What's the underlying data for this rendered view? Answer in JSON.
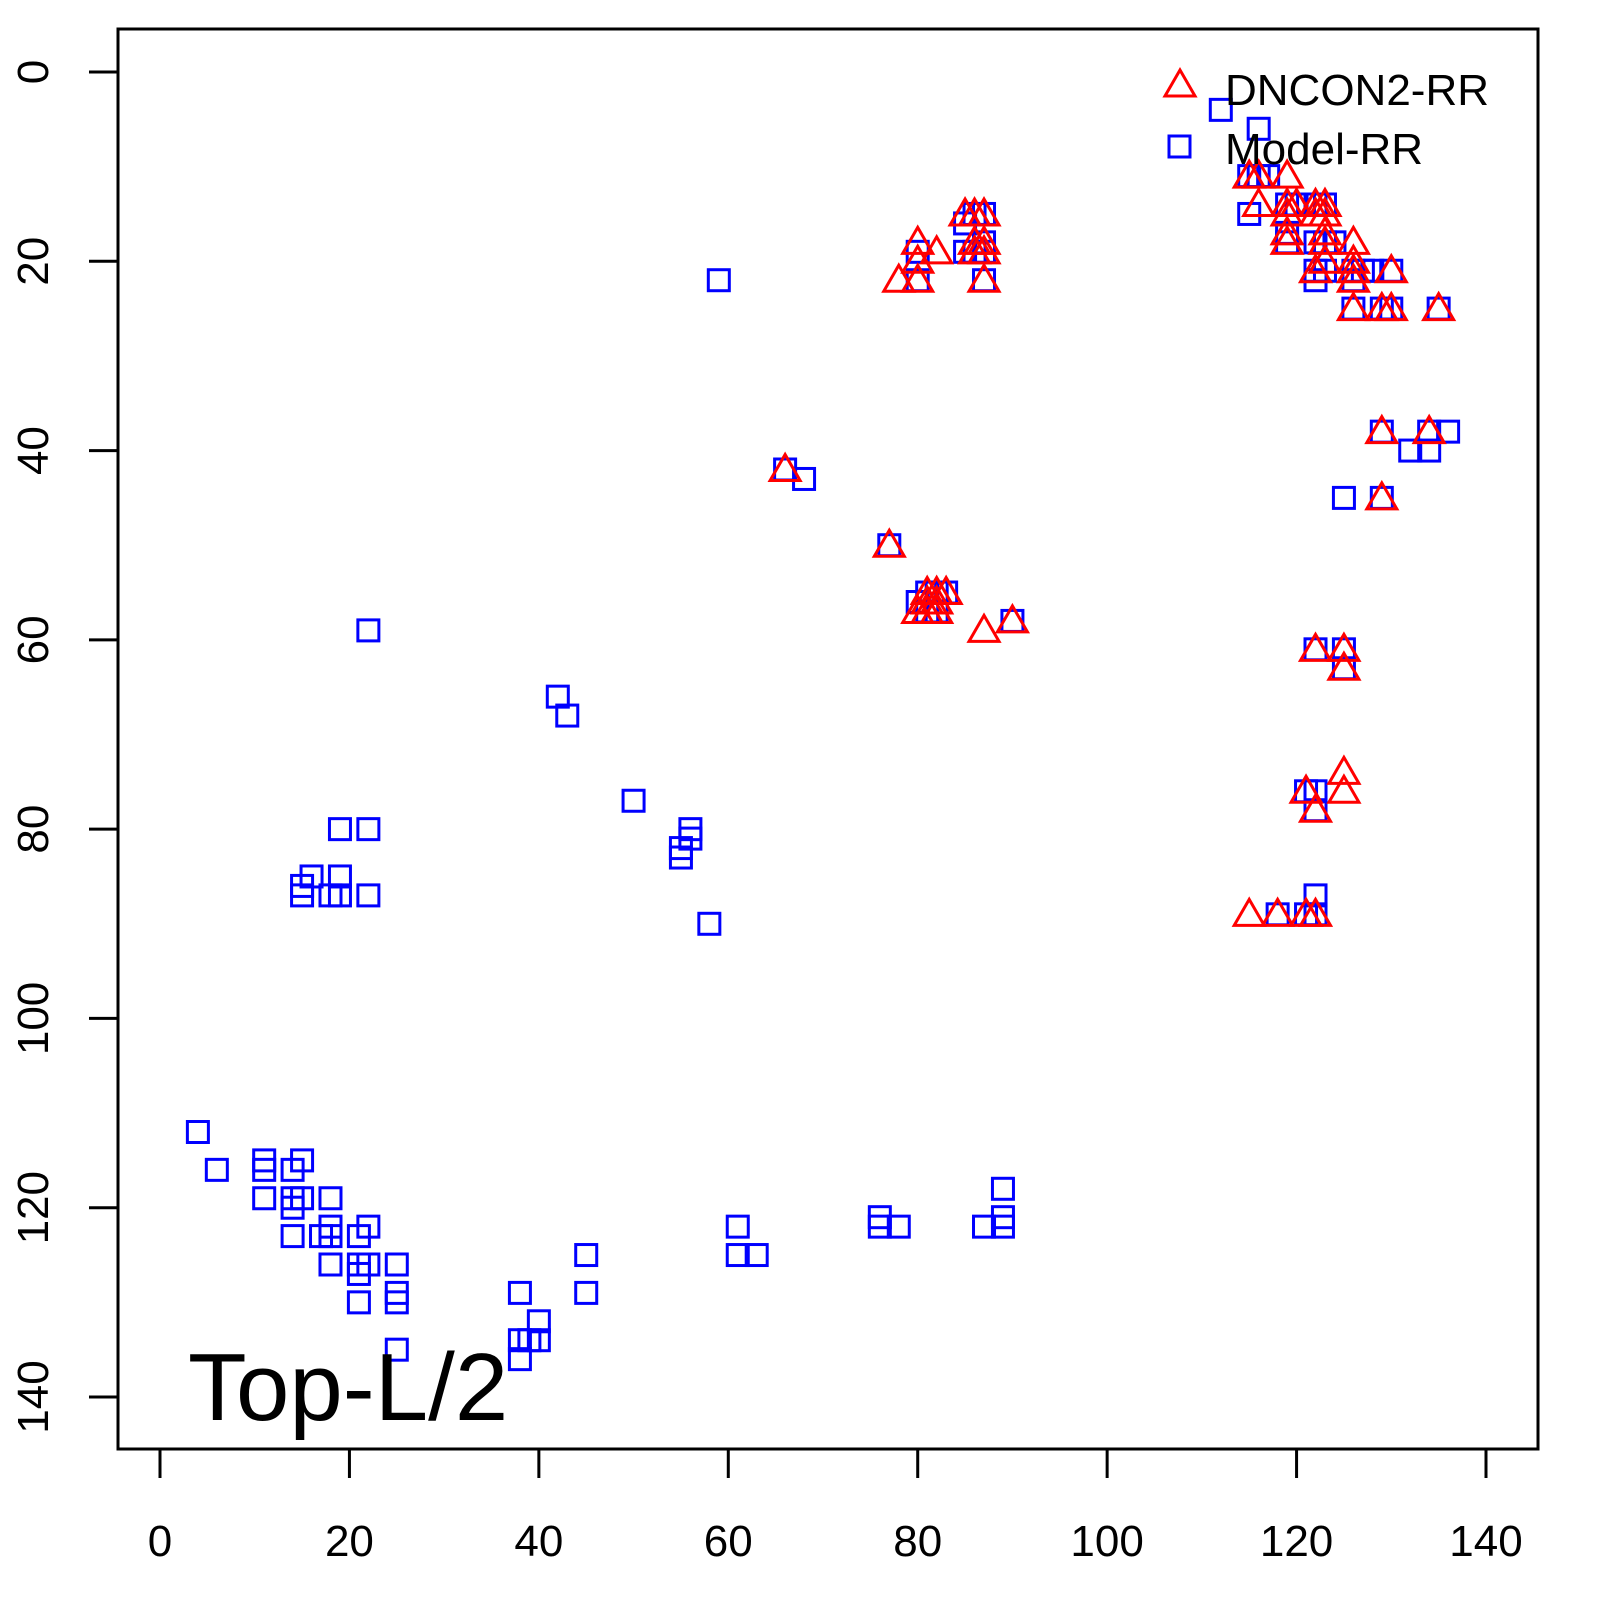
{
  "chart_data": {
    "type": "scatter",
    "title": "",
    "annotation": "Top-L/2",
    "xlabel": "",
    "ylabel": "",
    "xlim": [
      -2,
      145
    ],
    "ylim": [
      145,
      -4.5
    ],
    "y_inverted": true,
    "grid": false,
    "legend_position": "top-right",
    "x_ticks": [
      0,
      20,
      40,
      60,
      80,
      100,
      120,
      140
    ],
    "y_ticks": [
      0,
      20,
      40,
      60,
      80,
      100,
      120,
      140
    ],
    "series": [
      {
        "name": "DNCON2-RR",
        "marker": "triangle",
        "color": "#ff0000",
        "points": [
          [
            115,
            11
          ],
          [
            116,
            11
          ],
          [
            116,
            14
          ],
          [
            119,
            11
          ],
          [
            119,
            14
          ],
          [
            119,
            15
          ],
          [
            120,
            14
          ],
          [
            119,
            17
          ],
          [
            119,
            18
          ],
          [
            122,
            14
          ],
          [
            123,
            14
          ],
          [
            122,
            15
          ],
          [
            123,
            15
          ],
          [
            123,
            17
          ],
          [
            123,
            18
          ],
          [
            126,
            18
          ],
          [
            122,
            21
          ],
          [
            123,
            20
          ],
          [
            126,
            20
          ],
          [
            126,
            21
          ],
          [
            126,
            22
          ],
          [
            130,
            21
          ],
          [
            126,
            25
          ],
          [
            129,
            25
          ],
          [
            130,
            25
          ],
          [
            135,
            25
          ],
          [
            129,
            38
          ],
          [
            134,
            38
          ],
          [
            129,
            45
          ],
          [
            122,
            61
          ],
          [
            125,
            61
          ],
          [
            125,
            63
          ],
          [
            125,
            74
          ],
          [
            125,
            76
          ],
          [
            121,
            76
          ],
          [
            122,
            78
          ],
          [
            115,
            89
          ],
          [
            118,
            89
          ],
          [
            121,
            89
          ],
          [
            122,
            89
          ],
          [
            66,
            42
          ],
          [
            77,
            50
          ],
          [
            87,
            59
          ],
          [
            90,
            58
          ],
          [
            81,
            55
          ],
          [
            82,
            55
          ],
          [
            83,
            55
          ],
          [
            81,
            56
          ],
          [
            82,
            56
          ],
          [
            80,
            57
          ],
          [
            81,
            57
          ],
          [
            82,
            57
          ],
          [
            80,
            18
          ],
          [
            80,
            20
          ],
          [
            78,
            22
          ],
          [
            80,
            22
          ],
          [
            82,
            19
          ],
          [
            85,
            15
          ],
          [
            86,
            15
          ],
          [
            87,
            15
          ],
          [
            86,
            18
          ],
          [
            87,
            18
          ],
          [
            86,
            19
          ],
          [
            87,
            19
          ],
          [
            87,
            22
          ]
        ]
      },
      {
        "name": "Model-RR",
        "marker": "square",
        "color": "#0000ff",
        "points": [
          [
            112,
            4
          ],
          [
            116,
            6
          ],
          [
            59,
            22
          ],
          [
            22,
            59
          ],
          [
            42,
            66
          ],
          [
            43,
            68
          ],
          [
            50,
            77
          ],
          [
            56,
            80
          ],
          [
            56,
            81
          ],
          [
            55,
            82
          ],
          [
            55,
            83
          ],
          [
            58,
            90
          ],
          [
            19,
            80
          ],
          [
            22,
            80
          ],
          [
            16,
            85
          ],
          [
            19,
            85
          ],
          [
            15,
            86
          ],
          [
            15,
            87
          ],
          [
            18,
            87
          ],
          [
            19,
            87
          ],
          [
            22,
            87
          ],
          [
            4,
            112
          ],
          [
            6,
            116
          ],
          [
            11,
            115
          ],
          [
            11,
            116
          ],
          [
            11,
            119
          ],
          [
            15,
            115
          ],
          [
            14,
            116
          ],
          [
            15,
            119
          ],
          [
            14,
            119
          ],
          [
            14,
            120
          ],
          [
            14,
            123
          ],
          [
            17,
            123
          ],
          [
            18,
            119
          ],
          [
            18,
            122
          ],
          [
            18,
            123
          ],
          [
            18,
            126
          ],
          [
            22,
            122
          ],
          [
            21,
            123
          ],
          [
            21,
            126
          ],
          [
            22,
            126
          ],
          [
            21,
            127
          ],
          [
            21,
            130
          ],
          [
            25,
            126
          ],
          [
            25,
            129
          ],
          [
            25,
            130
          ],
          [
            25,
            135
          ],
          [
            38,
            129
          ],
          [
            40,
            132
          ],
          [
            38,
            134
          ],
          [
            39,
            134
          ],
          [
            40,
            134
          ],
          [
            38,
            136
          ],
          [
            45,
            125
          ],
          [
            45,
            129
          ],
          [
            61,
            122
          ],
          [
            61,
            125
          ],
          [
            63,
            125
          ],
          [
            76,
            121
          ],
          [
            76,
            122
          ],
          [
            78,
            122
          ],
          [
            89,
            118
          ],
          [
            89,
            121
          ],
          [
            89,
            122
          ],
          [
            87,
            122
          ],
          [
            66,
            42
          ],
          [
            68,
            43
          ],
          [
            77,
            50
          ],
          [
            81,
            55
          ],
          [
            82,
            55
          ],
          [
            83,
            55
          ],
          [
            80,
            56
          ],
          [
            81,
            57
          ],
          [
            82,
            57
          ],
          [
            90,
            58
          ],
          [
            80,
            19
          ],
          [
            80,
            22
          ],
          [
            86,
            15
          ],
          [
            87,
            15
          ],
          [
            85,
            16
          ],
          [
            87,
            18
          ],
          [
            85,
            19
          ],
          [
            86,
            19
          ],
          [
            87,
            19
          ],
          [
            87,
            22
          ],
          [
            115,
            11
          ],
          [
            116,
            11
          ],
          [
            117,
            11
          ],
          [
            115,
            15
          ],
          [
            119,
            14
          ],
          [
            120,
            14
          ],
          [
            122,
            14
          ],
          [
            123,
            14
          ],
          [
            119,
            17
          ],
          [
            119,
            18
          ],
          [
            122,
            18
          ],
          [
            123,
            18
          ],
          [
            124,
            18
          ],
          [
            122,
            21
          ],
          [
            123,
            21
          ],
          [
            126,
            21
          ],
          [
            127,
            21
          ],
          [
            128,
            21
          ],
          [
            130,
            21
          ],
          [
            122,
            22
          ],
          [
            126,
            22
          ],
          [
            126,
            25
          ],
          [
            129,
            25
          ],
          [
            130,
            25
          ],
          [
            135,
            25
          ],
          [
            129,
            38
          ],
          [
            134,
            38
          ],
          [
            136,
            38
          ],
          [
            132,
            40
          ],
          [
            134,
            40
          ],
          [
            125,
            45
          ],
          [
            129,
            45
          ],
          [
            122,
            61
          ],
          [
            125,
            61
          ],
          [
            125,
            63
          ],
          [
            121,
            76
          ],
          [
            122,
            76
          ],
          [
            122,
            78
          ],
          [
            122,
            87
          ],
          [
            118,
            89
          ],
          [
            121,
            89
          ],
          [
            122,
            89
          ]
        ]
      }
    ]
  }
}
